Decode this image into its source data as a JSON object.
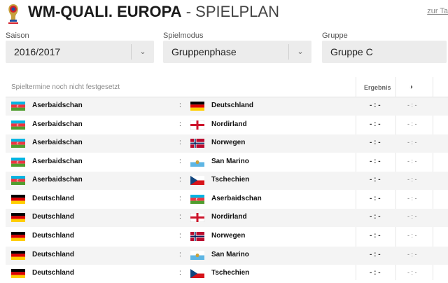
{
  "header": {
    "title_bold": "WM-QUALI. EUROPA",
    "title_sep": " - ",
    "title_rest": "SPIELPLAN",
    "top_link": "zur Ta"
  },
  "filters": {
    "saison": {
      "label": "Saison",
      "value": "2016/2017"
    },
    "spielmodus": {
      "label": "Spielmodus",
      "value": "Gruppenphase"
    },
    "gruppe": {
      "label": "Gruppe",
      "value": "Gruppe C"
    }
  },
  "table": {
    "note": "Spieltermine noch nicht festgesetzt",
    "col_result": "Ergebnis",
    "col_half": "◑",
    "rows": [
      {
        "home": "Aserbaidschan",
        "home_flag": "aze",
        "sep": ":",
        "away": "Deutschland",
        "away_flag": "ger",
        "result": "- : -",
        "half": "- : -"
      },
      {
        "home": "Aserbaidschan",
        "home_flag": "aze",
        "sep": ":",
        "away": "Nordirland",
        "away_flag": "nir",
        "result": "- : -",
        "half": "- : -"
      },
      {
        "home": "Aserbaidschan",
        "home_flag": "aze",
        "sep": ":",
        "away": "Norwegen",
        "away_flag": "nor",
        "result": "- : -",
        "half": "- : -"
      },
      {
        "home": "Aserbaidschan",
        "home_flag": "aze",
        "sep": ":",
        "away": "San Marino",
        "away_flag": "smr",
        "result": "- : -",
        "half": "- : -"
      },
      {
        "home": "Aserbaidschan",
        "home_flag": "aze",
        "sep": ":",
        "away": "Tschechien",
        "away_flag": "cze",
        "result": "- : -",
        "half": "- : -"
      },
      {
        "home": "Deutschland",
        "home_flag": "ger",
        "sep": ":",
        "away": "Aserbaidschan",
        "away_flag": "aze",
        "result": "- : -",
        "half": "- : -"
      },
      {
        "home": "Deutschland",
        "home_flag": "ger",
        "sep": ":",
        "away": "Nordirland",
        "away_flag": "nir",
        "result": "- : -",
        "half": "- : -"
      },
      {
        "home": "Deutschland",
        "home_flag": "ger",
        "sep": ":",
        "away": "Norwegen",
        "away_flag": "nor",
        "result": "- : -",
        "half": "- : -"
      },
      {
        "home": "Deutschland",
        "home_flag": "ger",
        "sep": ":",
        "away": "San Marino",
        "away_flag": "smr",
        "result": "- : -",
        "half": "- : -"
      },
      {
        "home": "Deutschland",
        "home_flag": "ger",
        "sep": ":",
        "away": "Tschechien",
        "away_flag": "cze",
        "result": "- : -",
        "half": "- : -"
      }
    ]
  }
}
